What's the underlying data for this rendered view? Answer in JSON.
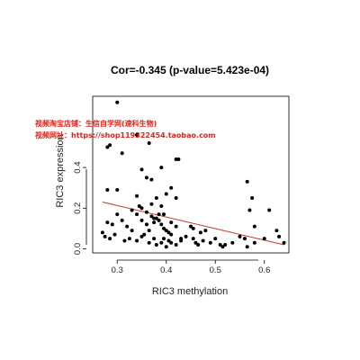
{
  "chart_data": {
    "type": "scatter",
    "title": "Cor=-0.345 (p-value=5.423e-04)",
    "xlabel": "RIC3 methylation",
    "ylabel": "RIC3 expression",
    "xlim": [
      0.25,
      0.65
    ],
    "ylim": [
      -0.02,
      0.75
    ],
    "xticks": [
      0.3,
      0.4,
      0.5,
      0.6
    ],
    "xtick_labels": [
      "0.3",
      "0.4",
      "0.5",
      "0.6"
    ],
    "yticks": [
      0.0,
      0.2,
      0.4
    ],
    "ytick_labels": [
      "0.0",
      "0.2",
      "0.4"
    ],
    "fit_line": {
      "x": [
        0.27,
        0.64
      ],
      "y": [
        0.23,
        0.02
      ],
      "color": "#c0392b"
    },
    "point_color": "#000000",
    "points": [
      [
        0.3,
        0.72
      ],
      [
        0.28,
        0.5
      ],
      [
        0.285,
        0.51
      ],
      [
        0.31,
        0.47
      ],
      [
        0.34,
        0.56
      ],
      [
        0.365,
        0.52
      ],
      [
        0.37,
        0.34
      ],
      [
        0.39,
        0.4
      ],
      [
        0.42,
        0.44
      ],
      [
        0.425,
        0.44
      ],
      [
        0.565,
        0.33
      ],
      [
        0.28,
        0.29
      ],
      [
        0.3,
        0.29
      ],
      [
        0.34,
        0.26
      ],
      [
        0.35,
        0.39
      ],
      [
        0.36,
        0.35
      ],
      [
        0.37,
        0.22
      ],
      [
        0.38,
        0.25
      ],
      [
        0.39,
        0.21
      ],
      [
        0.4,
        0.27
      ],
      [
        0.41,
        0.3
      ],
      [
        0.42,
        0.25
      ],
      [
        0.35,
        0.2
      ],
      [
        0.345,
        0.21
      ],
      [
        0.36,
        0.18
      ],
      [
        0.37,
        0.16
      ],
      [
        0.375,
        0.15
      ],
      [
        0.38,
        0.15
      ],
      [
        0.385,
        0.14
      ],
      [
        0.39,
        0.12
      ],
      [
        0.395,
        0.1
      ],
      [
        0.4,
        0.09
      ],
      [
        0.405,
        0.08
      ],
      [
        0.41,
        0.07
      ],
      [
        0.33,
        0.19
      ],
      [
        0.34,
        0.17
      ],
      [
        0.35,
        0.14
      ],
      [
        0.36,
        0.12
      ],
      [
        0.3,
        0.17
      ],
      [
        0.31,
        0.14
      ],
      [
        0.32,
        0.11
      ],
      [
        0.33,
        0.09
      ],
      [
        0.28,
        0.13
      ],
      [
        0.29,
        0.12
      ],
      [
        0.285,
        0.05
      ],
      [
        0.295,
        0.07
      ],
      [
        0.27,
        0.08
      ],
      [
        0.275,
        0.06
      ],
      [
        0.315,
        0.04
      ],
      [
        0.325,
        0.05
      ],
      [
        0.34,
        0.04
      ],
      [
        0.35,
        0.06
      ],
      [
        0.365,
        0.03
      ],
      [
        0.375,
        0.05
      ],
      [
        0.38,
        0.02
      ],
      [
        0.39,
        0.03
      ],
      [
        0.4,
        0.01
      ],
      [
        0.41,
        0.03
      ],
      [
        0.42,
        0.02
      ],
      [
        0.43,
        0.04
      ],
      [
        0.44,
        0.06
      ],
      [
        0.45,
        0.11
      ],
      [
        0.455,
        0.1
      ],
      [
        0.46,
        0.03
      ],
      [
        0.47,
        0.08
      ],
      [
        0.475,
        0.04
      ],
      [
        0.48,
        0.09
      ],
      [
        0.49,
        0.03
      ],
      [
        0.5,
        0.05
      ],
      [
        0.51,
        0.02
      ],
      [
        0.515,
        0.01
      ],
      [
        0.52,
        0.02
      ],
      [
        0.535,
        0.03
      ],
      [
        0.55,
        0.06
      ],
      [
        0.56,
        0.05
      ],
      [
        0.565,
        0.01
      ],
      [
        0.57,
        0.19
      ],
      [
        0.575,
        0.25
      ],
      [
        0.58,
        0.11
      ],
      [
        0.6,
        0.05
      ],
      [
        0.61,
        0.19
      ],
      [
        0.625,
        0.09
      ],
      [
        0.63,
        0.06
      ],
      [
        0.64,
        0.03
      ],
      [
        0.58,
        0.03
      ],
      [
        0.41,
        0.13
      ],
      [
        0.42,
        0.11
      ],
      [
        0.43,
        0.05
      ],
      [
        0.455,
        0.05
      ],
      [
        0.465,
        0.02
      ],
      [
        0.385,
        0.17
      ],
      [
        0.395,
        0.17
      ],
      [
        0.375,
        0.13
      ],
      [
        0.365,
        0.09
      ],
      [
        0.355,
        0.07
      ],
      [
        0.395,
        0.05
      ],
      [
        0.405,
        0.04
      ]
    ]
  },
  "watermark": {
    "line1": "视频淘宝店铺：生信自学网(速科生物)",
    "line2": "视频网址：https://shop119322454.taobao.com"
  }
}
